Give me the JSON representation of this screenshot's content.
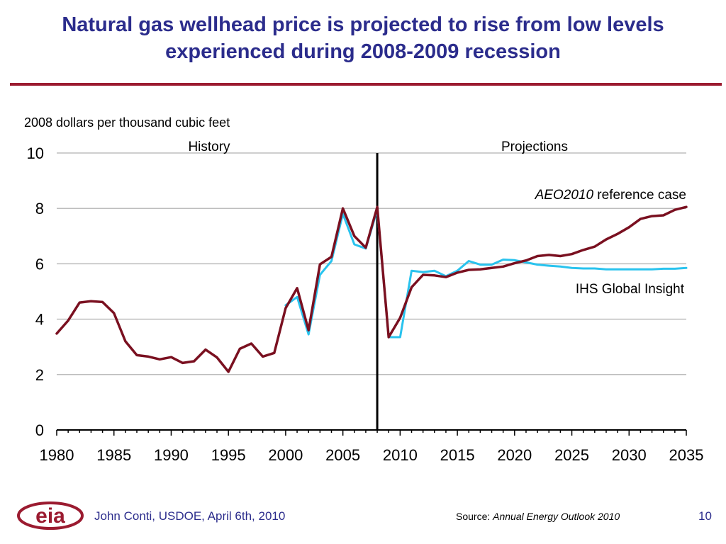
{
  "slide": {
    "title": "Natural gas wellhead price is projected to rise from low levels experienced during 2008-2009 recession",
    "author": "John Conti, USDOE, April 6th, 2010",
    "source_prefix": "Source: ",
    "source_title": "Annual Energy Outlook 2010",
    "page_number": "10",
    "logo_text": "eia"
  },
  "colors": {
    "title": "#2b2c8c",
    "rule": "#9b1b30",
    "aeo": "#7a1020",
    "ihs": "#29c3ee",
    "logo": "#9b1b30"
  },
  "chart_data": {
    "type": "line",
    "ylabel": "2008 dollars per thousand cubic feet",
    "xlim": [
      1980,
      2035
    ],
    "ylim": [
      0,
      10
    ],
    "x_ticks": [
      1980,
      1985,
      1990,
      1995,
      2000,
      2005,
      2010,
      2015,
      2020,
      2025,
      2030,
      2035
    ],
    "y_ticks": [
      0,
      2,
      4,
      6,
      8,
      10
    ],
    "grid": true,
    "divider_year": 2008,
    "region_labels": {
      "history": "History",
      "projections": "Projections"
    },
    "series": [
      {
        "key": "ihs",
        "name": "IHS Global Insight",
        "x": [
          2000,
          2001,
          2002,
          2003,
          2004,
          2005,
          2006,
          2007,
          2008,
          2009,
          2010,
          2011,
          2012,
          2013,
          2014,
          2015,
          2016,
          2017,
          2018,
          2019,
          2020,
          2021,
          2022,
          2023,
          2024,
          2025,
          2026,
          2027,
          2028,
          2029,
          2030,
          2031,
          2032,
          2033,
          2034,
          2035
        ],
        "values": [
          4.5,
          4.8,
          3.45,
          5.6,
          6.1,
          7.8,
          6.7,
          6.55,
          7.95,
          3.35,
          3.35,
          5.75,
          5.7,
          5.75,
          5.55,
          5.75,
          6.1,
          5.97,
          5.97,
          6.15,
          6.13,
          6.05,
          5.97,
          5.93,
          5.9,
          5.85,
          5.83,
          5.83,
          5.8,
          5.8,
          5.8,
          5.8,
          5.8,
          5.82,
          5.82,
          5.85
        ]
      },
      {
        "key": "aeo",
        "name_italic": "AEO2010",
        "name_rest": " reference case",
        "x": [
          1980,
          1981,
          1982,
          1983,
          1984,
          1985,
          1986,
          1987,
          1988,
          1989,
          1990,
          1991,
          1992,
          1993,
          1994,
          1995,
          1996,
          1997,
          1998,
          1999,
          2000,
          2001,
          2002,
          2003,
          2004,
          2005,
          2006,
          2007,
          2008,
          2009,
          2010,
          2011,
          2012,
          2013,
          2014,
          2015,
          2016,
          2017,
          2018,
          2019,
          2020,
          2021,
          2022,
          2023,
          2024,
          2025,
          2026,
          2027,
          2028,
          2029,
          2030,
          2031,
          2032,
          2033,
          2034,
          2035
        ],
        "values": [
          3.48,
          3.95,
          4.6,
          4.65,
          4.62,
          4.22,
          3.2,
          2.7,
          2.65,
          2.55,
          2.63,
          2.42,
          2.48,
          2.9,
          2.62,
          2.1,
          2.93,
          3.12,
          2.65,
          2.78,
          4.4,
          5.12,
          3.6,
          5.98,
          6.25,
          8.0,
          7.0,
          6.58,
          8.05,
          3.35,
          4.05,
          5.15,
          5.6,
          5.58,
          5.52,
          5.68,
          5.78,
          5.8,
          5.85,
          5.9,
          6.02,
          6.12,
          6.28,
          6.32,
          6.28,
          6.35,
          6.5,
          6.62,
          6.88,
          7.08,
          7.32,
          7.62,
          7.72,
          7.75,
          7.95,
          8.05
        ]
      }
    ]
  }
}
